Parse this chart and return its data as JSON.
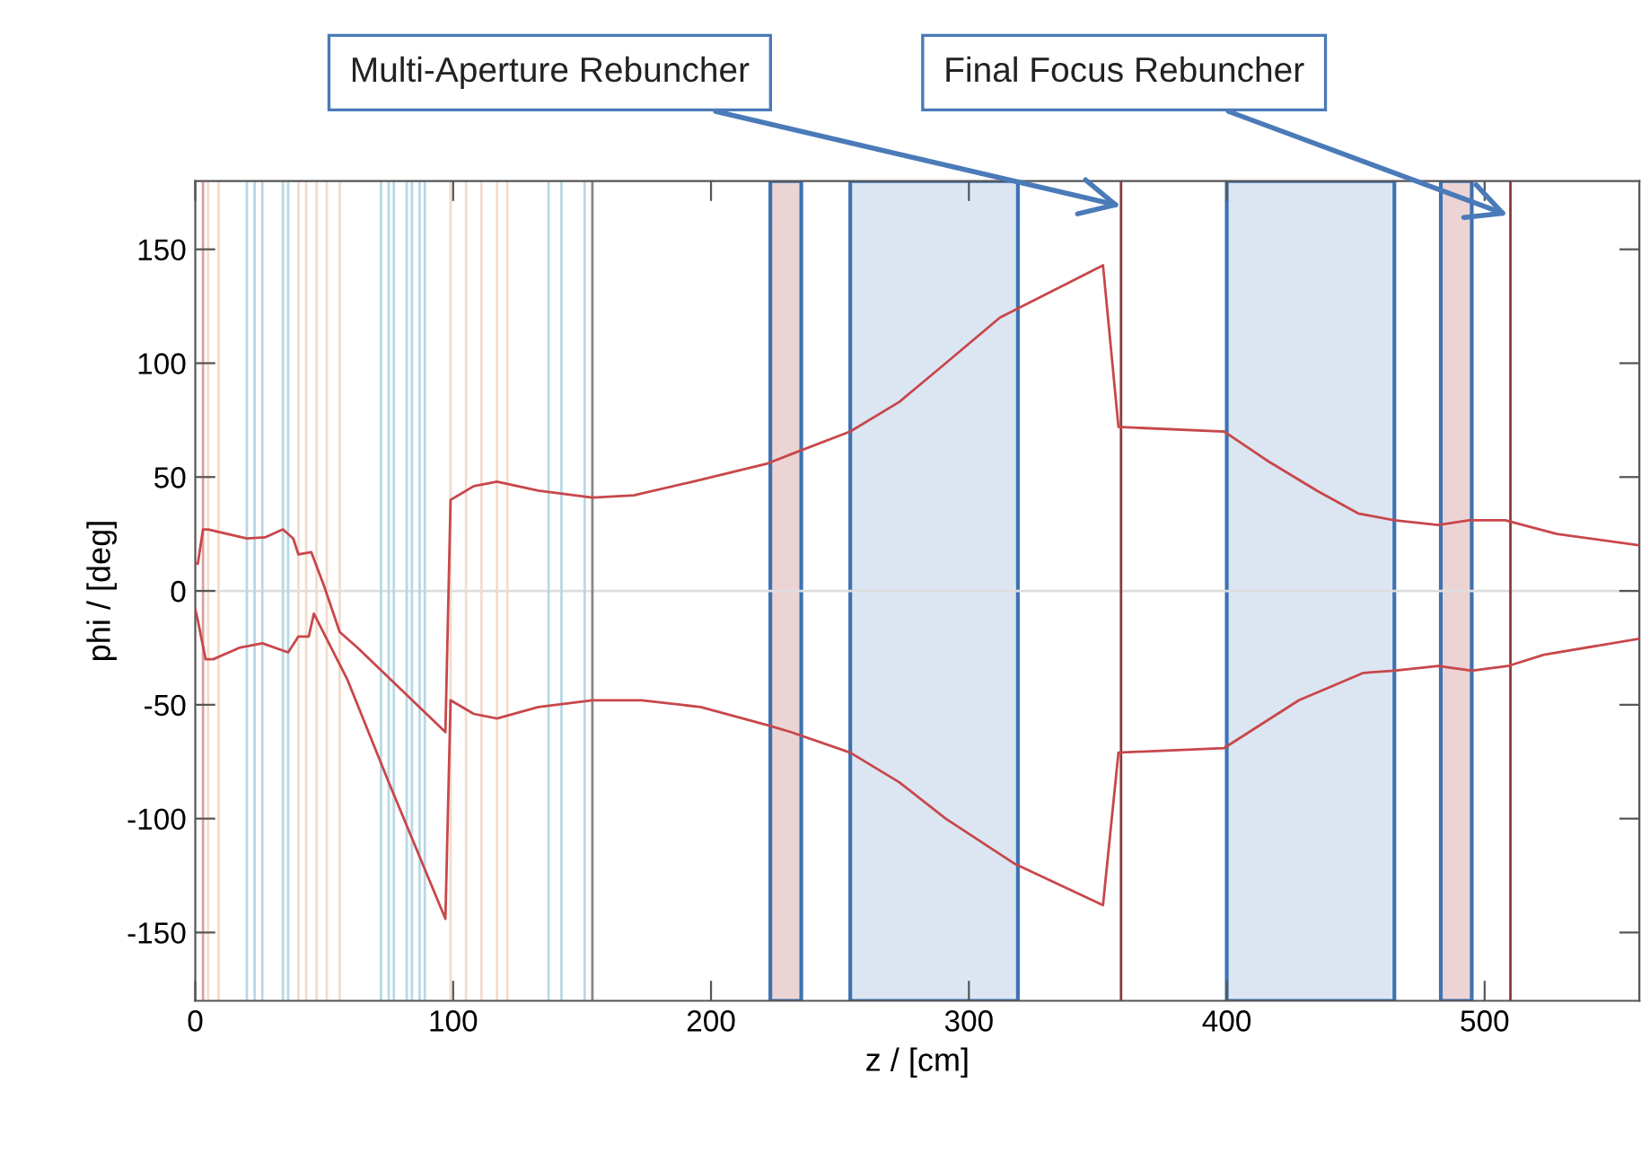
{
  "chart_data": {
    "type": "line",
    "xlabel": "z / [cm]",
    "ylabel": "phi / [deg]",
    "xlim": [
      0,
      560
    ],
    "ylim": [
      -180,
      180
    ],
    "xticks": [
      0,
      100,
      200,
      300,
      400,
      500
    ],
    "yticks": [
      -150,
      -100,
      -50,
      0,
      50,
      100,
      150
    ],
    "grid": false,
    "marker": "none",
    "line_style": "solid",
    "series": [
      {
        "color": "#c8474a",
        "x": [
          0,
          1,
          3,
          5,
          20,
          27,
          34,
          38,
          40,
          45,
          50,
          56,
          63,
          97,
          99,
          108,
          117,
          133,
          154,
          170,
          193,
          222,
          231,
          254,
          273,
          291,
          312,
          319,
          352,
          358,
          399,
          416,
          435,
          451,
          465,
          482,
          494,
          508,
          528,
          560
        ],
        "values": [
          12,
          12,
          27,
          27,
          23,
          23.5,
          27,
          23,
          16,
          17,
          2,
          -18,
          -25,
          -62,
          40,
          46,
          48,
          44,
          41,
          42,
          48,
          56,
          60,
          70,
          83,
          100,
          120,
          124,
          143,
          72,
          70,
          57,
          44,
          34,
          31,
          29,
          31,
          31,
          25,
          20
        ]
      },
      {
        "color": "#c8474a",
        "x": [
          0,
          1,
          4,
          7,
          17,
          26,
          36,
          40,
          44,
          46,
          59,
          75,
          97,
          99,
          108,
          117,
          133,
          154,
          173,
          196,
          222,
          231,
          254,
          273,
          291,
          318,
          352,
          358,
          399,
          428,
          453,
          465,
          482,
          495,
          509,
          523,
          560
        ],
        "values": [
          -8,
          -13,
          -30,
          -30,
          -25,
          -23,
          -27,
          -20,
          -20,
          -10,
          -39,
          -84,
          -144,
          -48,
          -54,
          -56,
          -51,
          -48,
          -48,
          -51,
          -59,
          -62,
          -71,
          -84,
          -100,
          -120,
          -138,
          -71,
          -69,
          -48,
          -36,
          -35,
          -33,
          -35,
          -33,
          -28,
          -21
        ]
      }
    ],
    "bands": [
      {
        "axis": "x",
        "from": 223,
        "to": 235,
        "color": "#ecd4d4"
      },
      {
        "axis": "x",
        "from": 254,
        "to": 319,
        "color": "#dce6f2"
      },
      {
        "axis": "x",
        "from": 400,
        "to": 465,
        "color": "#dce6f2"
      },
      {
        "axis": "x",
        "from": 483,
        "to": 495,
        "color": "#ecd4d4"
      }
    ],
    "ref_lines": [
      {
        "axis": "y",
        "value": 0,
        "color": "#dddddd"
      },
      {
        "axis": "x",
        "value": 3,
        "color": "#d9a0a0"
      },
      {
        "axis": "x",
        "value": 5,
        "color": "#f2dccb"
      },
      {
        "axis": "x",
        "value": 9,
        "color": "#f2dccb"
      },
      {
        "axis": "x",
        "value": 20,
        "color": "#b8d8e4"
      },
      {
        "axis": "x",
        "value": 23,
        "color": "#b8d8e4"
      },
      {
        "axis": "x",
        "value": 26,
        "color": "#b8d8e4"
      },
      {
        "axis": "x",
        "value": 34,
        "color": "#b8d8e4"
      },
      {
        "axis": "x",
        "value": 36,
        "color": "#b8d8e4"
      },
      {
        "axis": "x",
        "value": 40,
        "color": "#f2dccb"
      },
      {
        "axis": "x",
        "value": 43,
        "color": "#f2dccb"
      },
      {
        "axis": "x",
        "value": 47,
        "color": "#f2dccb"
      },
      {
        "axis": "x",
        "value": 51,
        "color": "#f2dccb"
      },
      {
        "axis": "x",
        "value": 56,
        "color": "#f2dccb"
      },
      {
        "axis": "x",
        "value": 72,
        "color": "#b8d8e4"
      },
      {
        "axis": "x",
        "value": 75,
        "color": "#b8d8e4"
      },
      {
        "axis": "x",
        "value": 77,
        "color": "#b8d8e4"
      },
      {
        "axis": "x",
        "value": 82,
        "color": "#b8d8e4"
      },
      {
        "axis": "x",
        "value": 84,
        "color": "#b8d8e4"
      },
      {
        "axis": "x",
        "value": 87,
        "color": "#b8d8e4"
      },
      {
        "axis": "x",
        "value": 89,
        "color": "#b8d8e4"
      },
      {
        "axis": "x",
        "value": 99,
        "color": "#f2dccb"
      },
      {
        "axis": "x",
        "value": 105,
        "color": "#f2dccb"
      },
      {
        "axis": "x",
        "value": 111,
        "color": "#f2dccb"
      },
      {
        "axis": "x",
        "value": 117,
        "color": "#f2dccb"
      },
      {
        "axis": "x",
        "value": 121,
        "color": "#f2dccb"
      },
      {
        "axis": "x",
        "value": 137,
        "color": "#b8d8e4"
      },
      {
        "axis": "x",
        "value": 142,
        "color": "#b8d8e4"
      },
      {
        "axis": "x",
        "value": 151,
        "color": "#b8d8e4"
      },
      {
        "axis": "x",
        "value": 154,
        "color": "#888888"
      },
      {
        "axis": "x",
        "value": 359,
        "color": "#8b3a3a"
      },
      {
        "axis": "x",
        "value": 510,
        "color": "#8b3a3a"
      }
    ],
    "annotations": [
      {
        "text": "Multi-Aperture Rebuncher",
        "x": 359,
        "y": 169
      },
      {
        "text": "Final Focus Rebuncher",
        "x": 509,
        "y": 165
      }
    ]
  }
}
